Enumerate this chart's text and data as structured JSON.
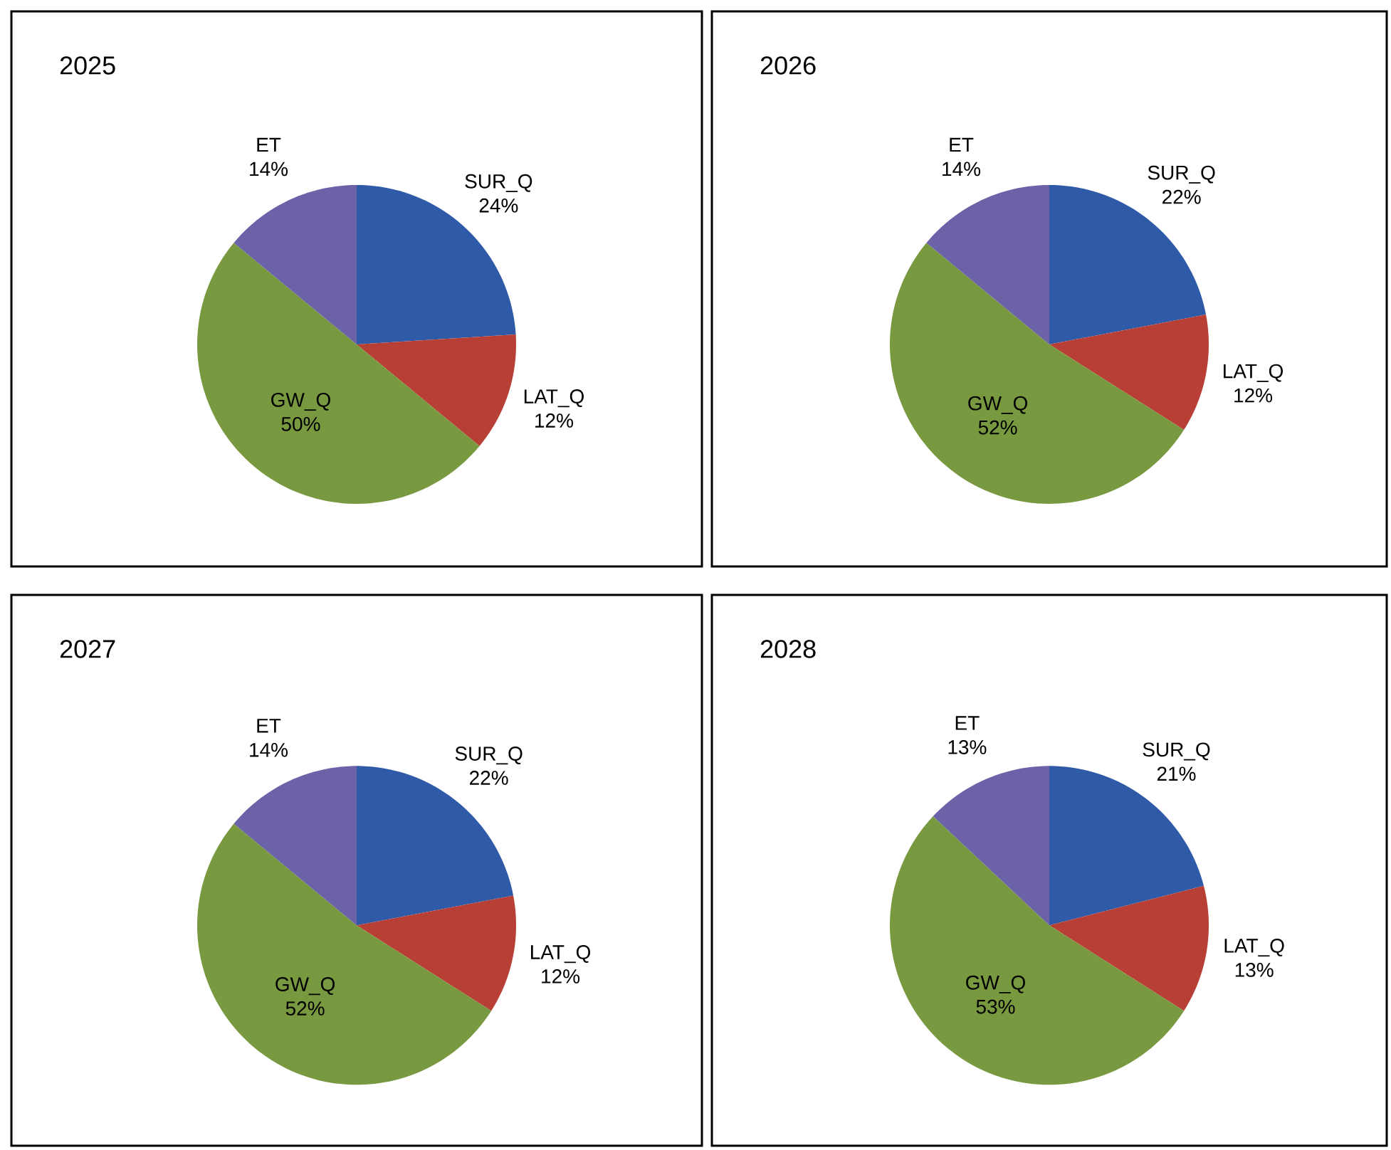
{
  "chart_data": [
    {
      "type": "pie",
      "title": "2025",
      "categories": [
        "SUR_Q",
        "LAT_Q",
        "GW_Q",
        "ET"
      ],
      "values": [
        24,
        12,
        50,
        14
      ],
      "value_labels": [
        "24%",
        "12%",
        "50%",
        "14%"
      ],
      "colors": [
        "#2e5aa7",
        "#b83f35",
        "#78993f",
        "#6b62a7"
      ]
    },
    {
      "type": "pie",
      "title": "2026",
      "categories": [
        "SUR_Q",
        "LAT_Q",
        "GW_Q",
        "ET"
      ],
      "values": [
        22,
        12,
        52,
        14
      ],
      "value_labels": [
        "22%",
        "12%",
        "52%",
        "14%"
      ],
      "colors": [
        "#2e5aa7",
        "#b83f35",
        "#78993f",
        "#6b62a7"
      ]
    },
    {
      "type": "pie",
      "title": "2027",
      "categories": [
        "SUR_Q",
        "LAT_Q",
        "GW_Q",
        "ET"
      ],
      "values": [
        22,
        12,
        52,
        14
      ],
      "value_labels": [
        "22%",
        "12%",
        "52%",
        "14%"
      ],
      "colors": [
        "#2e5aa7",
        "#b83f35",
        "#78993f",
        "#6b62a7"
      ]
    },
    {
      "type": "pie",
      "title": "2028",
      "categories": [
        "SUR_Q",
        "LAT_Q",
        "GW_Q",
        "ET"
      ],
      "values": [
        21,
        13,
        53,
        13
      ],
      "value_labels": [
        "21%",
        "13%",
        "53%",
        "13%"
      ],
      "colors": [
        "#2e5aa7",
        "#b83f35",
        "#78993f",
        "#6b62a7"
      ]
    }
  ]
}
